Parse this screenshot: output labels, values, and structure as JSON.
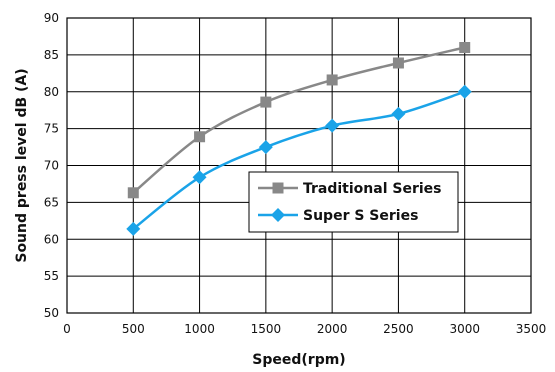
{
  "chart_data": {
    "type": "line",
    "xlabel": "Speed(rpm)",
    "ylabel": "Sound press level dB (A)",
    "xlim": [
      0,
      3500
    ],
    "ylim": [
      50,
      90
    ],
    "x_ticks": [
      0,
      500,
      1000,
      1500,
      2000,
      2500,
      3000,
      3500
    ],
    "y_ticks": [
      50,
      55,
      60,
      65,
      70,
      75,
      80,
      85,
      90
    ],
    "grid": true,
    "legend_position": "center-right",
    "x": [
      500,
      1000,
      1500,
      2000,
      2500,
      3000
    ],
    "series": [
      {
        "name": "Traditional Series",
        "values": [
          66.3,
          73.9,
          78.6,
          81.6,
          83.9,
          86.0
        ],
        "color": "#888888",
        "marker": "square"
      },
      {
        "name": "Super S Series",
        "values": [
          61.4,
          68.4,
          72.5,
          75.4,
          77.0,
          80.0
        ],
        "color": "#1aa3e8",
        "marker": "diamond"
      }
    ]
  }
}
